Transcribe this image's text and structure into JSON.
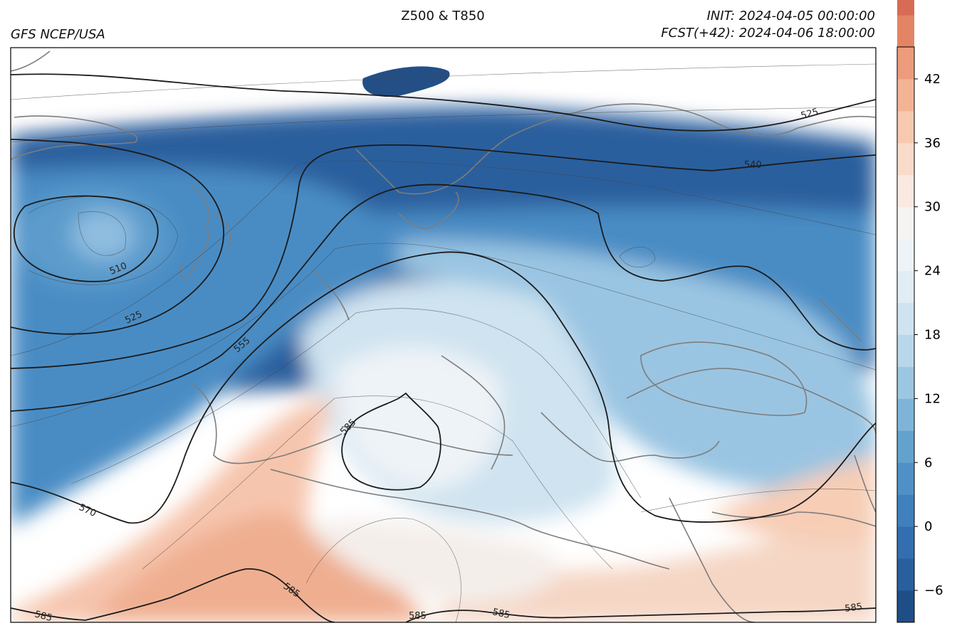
{
  "header": {
    "title": "Z500 & T850",
    "source": "GFS NCEP/USA",
    "init": "INIT: 2024-04-05 00:00:00",
    "forecast": "FCST(+42): 2024-04-06 18:00:00"
  },
  "colorbar": {
    "min": -9,
    "max": 45,
    "step": 3,
    "tick_labels": [
      "−6",
      "0",
      "6",
      "12",
      "18",
      "24",
      "30",
      "36",
      "42"
    ],
    "tick_values": [
      -6,
      0,
      6,
      12,
      18,
      24,
      30,
      36,
      42
    ],
    "colors": [
      "#1f4e87",
      "#2a5f9e",
      "#336fb0",
      "#3f80bd",
      "#4f91c6",
      "#64a2ce",
      "#7fb4d8",
      "#9cc7e2",
      "#b8d7ea",
      "#cfe3f0",
      "#e1edf5",
      "#eef3f7",
      "#f6f4f2",
      "#f9e9e0",
      "#f9dbc9",
      "#f7c9b0",
      "#f3b496",
      "#ec9c7c",
      "#e38465",
      "#d76b56",
      "#c95049",
      "#b93a43",
      "#a4283d",
      "#8c1d35"
    ]
  },
  "contour_labels": {
    "z510": "510",
    "z525a": "525",
    "z525b": "525",
    "z540": "540",
    "z555": "555",
    "z570": "570",
    "z585a": "585",
    "z585b": "585",
    "z585c": "585",
    "z585d": "585",
    "z585e": "585",
    "z585f": "585"
  }
}
